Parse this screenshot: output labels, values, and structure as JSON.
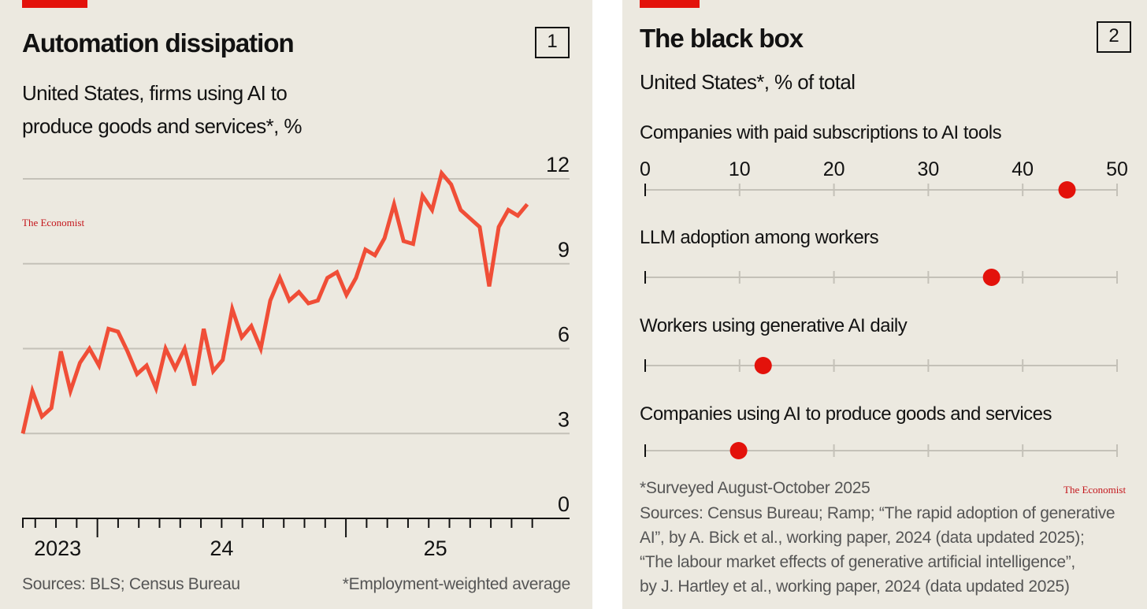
{
  "colors": {
    "accent": "#e3120b",
    "line": "#f04e37",
    "dot": "#e3120b",
    "background": "#ece9e0"
  },
  "left": {
    "number": "1",
    "title": "Automation dissipation",
    "subtitle_line1": "United States, firms using AI to",
    "subtitle_line2": "produce goods and services*, %",
    "logo": "The Economist",
    "source": "Sources: BLS; Census Bureau",
    "note": "*Employment-weighted average"
  },
  "right": {
    "number": "2",
    "title": "The black box",
    "subtitle": "United States*, % of total",
    "logo": "The Economist",
    "footnote": "*Surveyed August-October 2025",
    "sources": [
      "Sources: Census Bureau; Ramp; “The rapid adoption of generative",
      "AI”, by A. Bick et al., working paper, 2024 (data updated 2025);",
      "“The labour market effects of generative artificial intelligence”,",
      "by J. Hartley et al., working paper, 2024 (data updated 2025)"
    ]
  },
  "chart_data": [
    {
      "type": "line",
      "title": "Automation dissipation",
      "ylabel": "%",
      "ylim": [
        0,
        12
      ],
      "yticks": [
        "0",
        "3",
        "6",
        "9",
        "12"
      ],
      "xlim": [
        2023.7,
        2025.9
      ],
      "xtick_labels": [
        {
          "label": "2023",
          "x": 2023.84
        },
        {
          "label": "24",
          "x": 2024.5
        },
        {
          "label": "25",
          "x": 2025.36
        }
      ],
      "x_start": 2023.7,
      "x_step": 0.0383,
      "series": [
        {
          "name": "Firms using AI",
          "values": [
            3.0,
            4.5,
            3.6,
            3.9,
            5.9,
            4.5,
            5.5,
            6.0,
            5.4,
            6.7,
            6.6,
            5.9,
            5.1,
            5.4,
            4.6,
            6.0,
            5.3,
            6.0,
            4.7,
            6.7,
            5.2,
            5.6,
            7.4,
            6.4,
            6.8,
            6.0,
            7.7,
            8.5,
            7.7,
            8.0,
            7.6,
            7.7,
            8.5,
            8.7,
            7.9,
            8.5,
            9.5,
            9.3,
            9.9,
            11.1,
            9.8,
            9.7,
            11.4,
            10.9,
            12.2,
            11.8,
            10.9,
            10.6,
            10.3,
            8.2,
            10.3,
            10.9,
            10.7,
            11.1
          ]
        }
      ]
    },
    {
      "type": "scatter",
      "title": "The black box",
      "xlim": [
        0,
        50
      ],
      "xticks": [
        "0",
        "10",
        "20",
        "30",
        "40",
        "50"
      ],
      "categories": [
        "Companies with paid subscriptions to AI tools",
        "LLM adoption among workers",
        "Workers using generative AI daily",
        "Companies using AI to produce goods and services"
      ],
      "values": [
        44.7,
        36.7,
        12.5,
        9.9
      ]
    }
  ]
}
